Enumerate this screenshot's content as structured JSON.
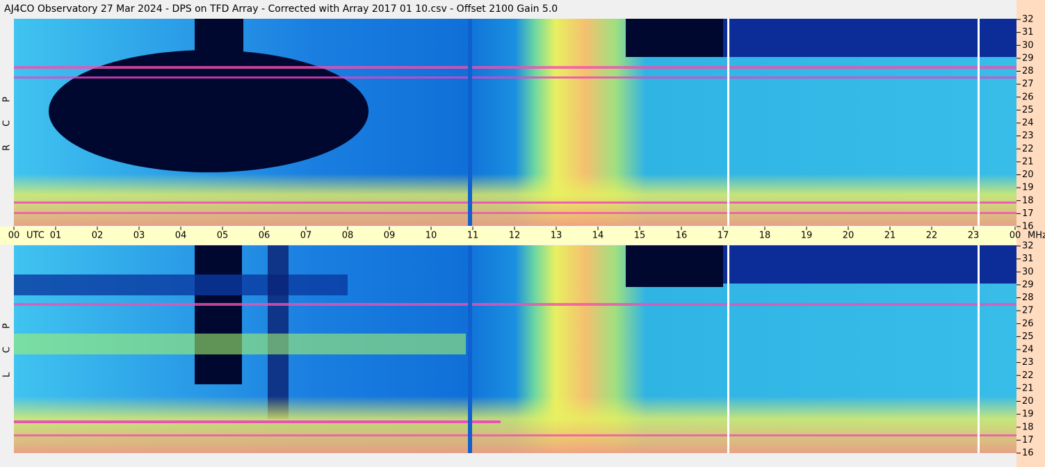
{
  "header": {
    "title": "AJ4CO Observatory  27 Mar 2024  -  DPS on TFD Array  -  Corrected with Array 2017 01 10.csv  -  Offset 2100  Gain 5.0"
  },
  "panels": [
    {
      "label": [
        "R",
        "C",
        "P"
      ]
    },
    {
      "label": [
        "L",
        "C",
        "P"
      ]
    }
  ],
  "time_axis": [
    "00",
    "UTC",
    "01",
    "02",
    "03",
    "04",
    "05",
    "06",
    "07",
    "08",
    "09",
    "10",
    "11",
    "12",
    "13",
    "14",
    "15",
    "16",
    "17",
    "18",
    "19",
    "20",
    "21",
    "22",
    "23",
    "00",
    "MHz"
  ],
  "frequency_axis": [
    "32",
    "31",
    "30",
    "29",
    "28",
    "27",
    "26",
    "25",
    "24",
    "23",
    "22",
    "21",
    "20",
    "19",
    "18",
    "17",
    "16"
  ]
}
